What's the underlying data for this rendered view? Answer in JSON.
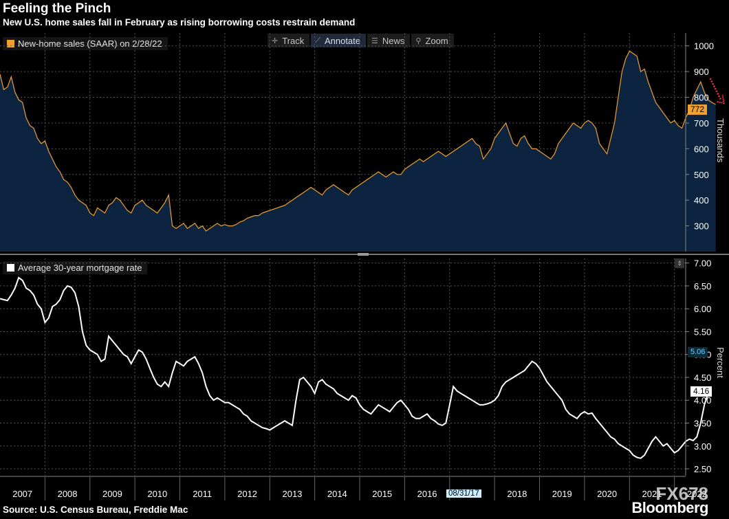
{
  "title": "Feeling the Pinch",
  "subtitle": "New U.S. home sales fall in February as rising borrowing costs restrain demand",
  "source": "Source: U.S. Census Bureau, Freddie Mac",
  "brand": "Bloomberg",
  "watermark": "FX678",
  "toolbar": [
    {
      "label": "Track",
      "icon": "crosshair-icon"
    },
    {
      "label": "Annotate",
      "icon": "pencil-icon"
    },
    {
      "label": "News",
      "icon": "list-icon"
    },
    {
      "label": "Zoom",
      "icon": "magnifier-icon"
    }
  ],
  "colors": {
    "sales": "#f0a030",
    "sales_fill": "#0d2440",
    "rate": "#ffffff",
    "grid": "#555555",
    "arrow": "#ff2d4d"
  },
  "date_tag": "08/31/17",
  "chart_data": [
    {
      "type": "area",
      "legend": "New-home sales (SAAR) on 2/28/22",
      "ylabel": "Thousands",
      "ylim": [
        200,
        1050
      ],
      "yticks": [
        300,
        400,
        500,
        600,
        700,
        800,
        900,
        1000
      ],
      "last_value_label": "772",
      "x_start": 2007.0,
      "x_step": 0.0833333,
      "values": [
        890,
        830,
        840,
        880,
        820,
        790,
        780,
        720,
        690,
        680,
        640,
        620,
        630,
        590,
        560,
        530,
        510,
        480,
        470,
        450,
        420,
        400,
        390,
        380,
        350,
        340,
        370,
        360,
        350,
        380,
        390,
        410,
        400,
        380,
        360,
        350,
        380,
        390,
        400,
        380,
        370,
        360,
        350,
        370,
        390,
        420,
        300,
        290,
        300,
        310,
        290,
        300,
        310,
        290,
        300,
        280,
        290,
        300,
        310,
        300,
        305,
        300,
        300,
        305,
        315,
        320,
        330,
        335,
        340,
        340,
        350,
        355,
        360,
        365,
        370,
        375,
        380,
        390,
        400,
        410,
        420,
        430,
        440,
        450,
        440,
        430,
        420,
        440,
        450,
        460,
        450,
        440,
        430,
        420,
        440,
        450,
        460,
        470,
        480,
        490,
        500,
        510,
        500,
        490,
        500,
        510,
        500,
        500,
        520,
        530,
        540,
        550,
        560,
        550,
        560,
        570,
        580,
        590,
        580,
        570,
        580,
        590,
        600,
        610,
        620,
        630,
        640,
        620,
        610,
        560,
        580,
        600,
        640,
        660,
        680,
        700,
        660,
        620,
        610,
        640,
        650,
        620,
        600,
        600,
        590,
        580,
        570,
        560,
        580,
        620,
        640,
        660,
        680,
        700,
        690,
        680,
        700,
        710,
        700,
        680,
        620,
        600,
        580,
        640,
        700,
        800,
        900,
        950,
        980,
        970,
        960,
        900,
        910,
        860,
        820,
        780,
        760,
        740,
        720,
        700,
        710,
        690,
        680,
        720,
        750,
        800,
        830,
        860,
        820,
        790,
        780,
        772
      ],
      "annotation": "red dotted arrow pointing down to latest value"
    },
    {
      "type": "line",
      "legend": "Average 30-year mortgage rate",
      "ylabel": "Percent",
      "ylim": [
        2.35,
        7.1
      ],
      "yticks": [
        "2.50",
        "3.00",
        "3.50",
        "4.00",
        "4.50",
        "5.00",
        "5.50",
        "6.00",
        "6.50",
        "7.00"
      ],
      "last_value_label": "4.16",
      "hover_label": "5.06",
      "x_start": 2007.0,
      "x_step": 0.0833333,
      "values": [
        6.22,
        6.2,
        6.18,
        6.3,
        6.45,
        6.68,
        6.62,
        6.45,
        6.4,
        6.3,
        6.1,
        6.0,
        5.7,
        5.8,
        6.05,
        6.1,
        6.2,
        6.4,
        6.5,
        6.47,
        6.35,
        6.05,
        5.5,
        5.2,
        5.1,
        5.05,
        5.0,
        4.85,
        4.9,
        5.4,
        5.3,
        5.2,
        5.1,
        5.0,
        4.95,
        4.8,
        4.95,
        5.1,
        5.05,
        4.9,
        4.7,
        4.5,
        4.35,
        4.3,
        4.4,
        4.3,
        4.6,
        4.85,
        4.8,
        4.75,
        4.85,
        4.9,
        4.95,
        4.8,
        4.6,
        4.3,
        4.1,
        4.0,
        4.05,
        4.0,
        3.95,
        3.95,
        3.9,
        3.85,
        3.8,
        3.7,
        3.65,
        3.55,
        3.5,
        3.45,
        3.4,
        3.38,
        3.35,
        3.4,
        3.45,
        3.5,
        3.55,
        3.5,
        3.45,
        4.0,
        4.45,
        4.5,
        4.4,
        4.3,
        4.15,
        4.4,
        4.45,
        4.35,
        4.3,
        4.25,
        4.15,
        4.1,
        4.05,
        4.0,
        4.1,
        4.05,
        3.9,
        3.8,
        3.75,
        3.7,
        3.8,
        3.9,
        3.85,
        3.8,
        3.75,
        3.85,
        3.95,
        4.0,
        3.9,
        3.8,
        3.65,
        3.6,
        3.6,
        3.65,
        3.7,
        3.6,
        3.55,
        3.48,
        3.45,
        3.5,
        3.9,
        4.3,
        4.2,
        4.15,
        4.1,
        4.05,
        4.0,
        3.95,
        3.9,
        3.9,
        3.92,
        3.95,
        4.0,
        4.1,
        4.3,
        4.4,
        4.45,
        4.5,
        4.55,
        4.6,
        4.65,
        4.75,
        4.85,
        4.8,
        4.7,
        4.55,
        4.4,
        4.3,
        4.2,
        4.1,
        4.0,
        3.8,
        3.7,
        3.65,
        3.6,
        3.7,
        3.75,
        3.7,
        3.72,
        3.6,
        3.5,
        3.4,
        3.3,
        3.2,
        3.15,
        3.05,
        3.0,
        2.95,
        2.9,
        2.8,
        2.75,
        2.73,
        2.8,
        2.95,
        3.1,
        3.2,
        3.1,
        3.0,
        3.05,
        2.95,
        2.85,
        2.9,
        3.0,
        3.1,
        3.15,
        3.12,
        3.2,
        3.5,
        3.9,
        4.16
      ]
    }
  ],
  "x_axis": {
    "ticks": [
      "2007",
      "2008",
      "2009",
      "2010",
      "2011",
      "2012",
      "2013",
      "2014",
      "2015",
      "2016",
      "2017",
      "2018",
      "2019",
      "2020",
      "2021",
      "2022"
    ],
    "start": 2007,
    "end": 2022.25
  }
}
